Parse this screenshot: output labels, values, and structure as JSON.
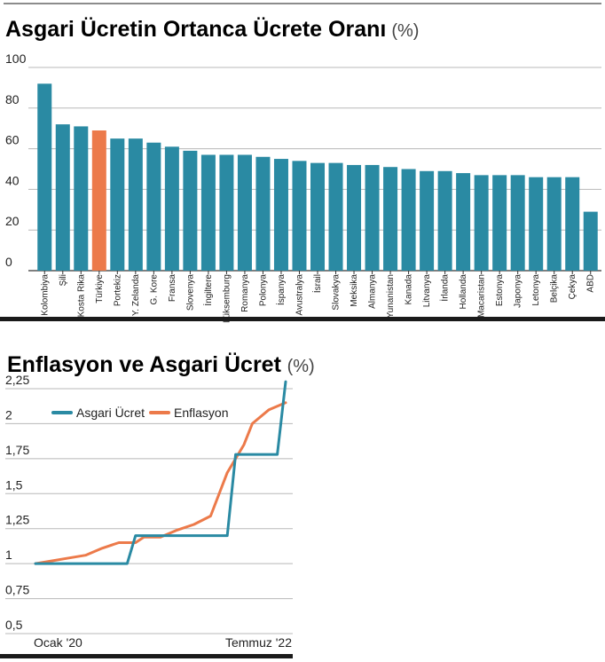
{
  "chart_data": [
    {
      "type": "bar",
      "title": "Asgari Ücretin Ortanca Ücrete Oranı",
      "unit": "(%)",
      "ylim": [
        0,
        100
      ],
      "yticks": [
        "0",
        "20",
        "40",
        "60",
        "80",
        "100"
      ],
      "grid": true,
      "categories": [
        "Kolombiya",
        "Şili",
        "Kosta Rika",
        "Türkiye",
        "Portekiz",
        "Y. Zelanda",
        "G. Kore",
        "Fransa",
        "Slovenya",
        "İngiltere",
        "Lüksemburg",
        "Romanya",
        "Polonya",
        "İspanya",
        "Avustralya",
        "İsrail",
        "Slovakya",
        "Meksika",
        "Almanya",
        "Yunanistan",
        "Kanada",
        "Litvanya",
        "İrlanda",
        "Hollanda",
        "Macaristan",
        "Estonya",
        "Japonya",
        "Letonya",
        "Belçika",
        "Çekya",
        "ABD"
      ],
      "values": [
        92,
        72,
        71,
        69,
        65,
        65,
        63,
        61,
        59,
        57,
        57,
        57,
        56,
        55,
        54,
        53,
        53,
        52,
        52,
        51,
        50,
        49,
        49,
        48,
        47,
        47,
        47,
        46,
        46,
        46,
        29
      ],
      "colors": {
        "default": "#2a8aa3",
        "highlight": "#ec7a4a"
      },
      "highlight": "Türkiye"
    },
    {
      "type": "line",
      "title": "Enflasyon ve Asgari Ücret",
      "unit": "(%)",
      "ylim": [
        0.5,
        2.25
      ],
      "yticks": [
        "0,5",
        "0,75",
        "1",
        "1,25",
        "1,5",
        "1,75",
        "2",
        "2,25"
      ],
      "ytick_values": [
        0.5,
        0.75,
        1,
        1.25,
        1.5,
        1.75,
        2,
        2.25
      ],
      "xlabels": [
        "Ocak '20",
        "Temmuz '22"
      ],
      "xrange": [
        "2020-01",
        "2022-07"
      ],
      "grid": true,
      "legend_position": "top-left",
      "series": [
        {
          "name": "Asgari Ücret",
          "color": "#2a8aa3",
          "points": [
            [
              "2020-01",
              1.0
            ],
            [
              "2020-12",
              1.0
            ],
            [
              "2021-01",
              1.2
            ],
            [
              "2021-12",
              1.2
            ],
            [
              "2022-01",
              1.78
            ],
            [
              "2022-06",
              1.78
            ],
            [
              "2022-07",
              2.3
            ]
          ]
        },
        {
          "name": "Enflasyon",
          "color": "#ec7a4a",
          "points": [
            [
              "2020-01",
              1.0
            ],
            [
              "2020-03",
              1.02
            ],
            [
              "2020-05",
              1.04
            ],
            [
              "2020-07",
              1.06
            ],
            [
              "2020-09",
              1.11
            ],
            [
              "2020-11",
              1.15
            ],
            [
              "2021-01",
              1.15
            ],
            [
              "2021-02",
              1.19
            ],
            [
              "2021-04",
              1.19
            ],
            [
              "2021-06",
              1.24
            ],
            [
              "2021-08",
              1.28
            ],
            [
              "2021-10",
              1.34
            ],
            [
              "2021-12",
              1.65
            ],
            [
              "2022-02",
              1.85
            ],
            [
              "2022-03",
              2.0
            ],
            [
              "2022-05",
              2.1
            ],
            [
              "2022-07",
              2.15
            ]
          ]
        }
      ]
    }
  ]
}
